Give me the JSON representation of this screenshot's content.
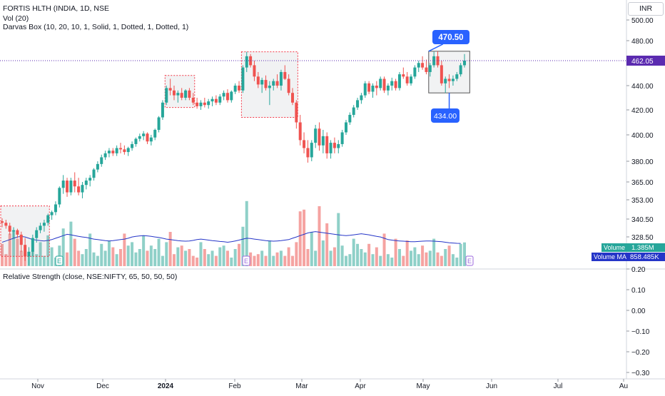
{
  "header": {
    "symbol_line": "FORTIS HLTH (INDIA, 1D, NSE",
    "volume_line": "Vol (20)",
    "darvas_line": "Darvas Box (10, 20, 10, 1, Solid, 1, Dotted, 1, Dotted, 1)",
    "currency_button": "INR"
  },
  "indicator_pane": {
    "legend": "Relative Strength (close, NSE:NIFTY, 65, 50, 50, 50)"
  },
  "price_axis": {
    "ticks": [
      "500.00",
      "480.00",
      "462.05",
      "440.00",
      "420.00",
      "400.00",
      "380.00",
      "365.00",
      "353.00",
      "340.50",
      "328.50"
    ]
  },
  "rs_axis": {
    "ticks": [
      "0.20",
      "0.10",
      "0.00",
      "−0.10",
      "−0.20",
      "−0.30"
    ]
  },
  "time_axis": {
    "labels": [
      "Nov",
      "Dec",
      "2024",
      "Feb",
      "Mar",
      "Apr",
      "May",
      "Jun",
      "Jul",
      "Au"
    ]
  },
  "labels": {
    "last_price": "462.05",
    "volume_tag": "Volume",
    "volume_value": "1.385M",
    "volume_ma_tag": "Volume MA",
    "volume_ma_value": "858.485K",
    "box_high": "470.50",
    "box_low": "434.00",
    "earnings_marker": "E"
  },
  "colors": {
    "up": "#26a69a",
    "down": "#ef5350",
    "volume_up": "#8fd0c8",
    "volume_down": "#f5a3a1",
    "volume_ma": "#2535c8",
    "accent": "#2962ff",
    "last_price_bg": "#5b2bb0",
    "darvas_border": "#f23645",
    "earnings_green": "#26a69a",
    "earnings_purple": "#9c6ade"
  },
  "chart_data": {
    "type": "candlestick",
    "symbol": "FORTIS HLTH",
    "interval": "1D",
    "exchange": "NSE",
    "x_axis_months": [
      "Nov",
      "Dec",
      "2024",
      "Feb",
      "Mar",
      "Apr",
      "May",
      "Jun",
      "Jul",
      "Au"
    ],
    "y_axis_ticks": [
      500.0,
      480.0,
      462.05,
      440.0,
      420.0,
      400.0,
      380.0,
      365.0,
      353.0,
      340.5,
      328.5
    ],
    "ylim": [
      326,
      505
    ],
    "candles": [
      [
        339,
        341,
        335,
        338
      ],
      [
        338,
        340,
        334,
        336
      ],
      [
        336,
        338,
        330,
        332
      ],
      [
        332,
        335,
        328,
        333
      ],
      [
        333,
        334,
        328,
        330
      ],
      [
        330,
        332,
        322,
        325
      ],
      [
        325,
        328,
        318,
        320
      ],
      [
        320,
        324,
        316,
        322
      ],
      [
        322,
        330,
        320,
        328
      ],
      [
        328,
        335,
        326,
        333
      ],
      [
        333,
        338,
        331,
        336
      ],
      [
        336,
        340,
        332,
        338
      ],
      [
        338,
        344,
        336,
        343
      ],
      [
        343,
        346,
        340,
        345
      ],
      [
        345,
        352,
        343,
        350
      ],
      [
        350,
        362,
        348,
        361
      ],
      [
        361,
        370,
        357,
        366
      ],
      [
        366,
        368,
        355,
        358
      ],
      [
        358,
        368,
        356,
        366
      ],
      [
        366,
        372,
        358,
        362
      ],
      [
        362,
        368,
        356,
        358
      ],
      [
        358,
        365,
        354,
        363
      ],
      [
        363,
        368,
        360,
        366
      ],
      [
        366,
        370,
        362,
        368
      ],
      [
        368,
        375,
        366,
        374
      ],
      [
        374,
        380,
        372,
        378
      ],
      [
        378,
        385,
        376,
        383
      ],
      [
        383,
        388,
        381,
        386
      ],
      [
        386,
        390,
        383,
        388
      ],
      [
        388,
        390,
        384,
        386
      ],
      [
        386,
        392,
        384,
        390
      ],
      [
        390,
        394,
        386,
        389
      ],
      [
        389,
        392,
        385,
        387
      ],
      [
        387,
        391,
        384,
        390
      ],
      [
        390,
        395,
        388,
        393
      ],
      [
        393,
        398,
        391,
        397
      ],
      [
        397,
        401,
        395,
        399
      ],
      [
        399,
        403,
        396,
        401
      ],
      [
        401,
        402,
        393,
        395
      ],
      [
        395,
        400,
        392,
        398
      ],
      [
        398,
        405,
        396,
        404
      ],
      [
        404,
        415,
        402,
        414
      ],
      [
        414,
        428,
        412,
        426
      ],
      [
        426,
        440,
        424,
        438
      ],
      [
        438,
        446,
        432,
        436
      ],
      [
        436,
        440,
        428,
        432
      ],
      [
        432,
        436,
        426,
        434
      ],
      [
        434,
        438,
        428,
        430
      ],
      [
        430,
        437,
        428,
        436
      ],
      [
        436,
        438,
        428,
        430
      ],
      [
        430,
        434,
        424,
        426
      ],
      [
        426,
        430,
        421,
        423
      ],
      [
        423,
        428,
        420,
        426
      ],
      [
        426,
        430,
        422,
        424
      ],
      [
        424,
        429,
        421,
        427
      ],
      [
        427,
        431,
        423,
        429
      ],
      [
        429,
        432,
        424,
        426
      ],
      [
        426,
        433,
        424,
        431
      ],
      [
        431,
        436,
        428,
        434
      ],
      [
        434,
        437,
        426,
        428
      ],
      [
        428,
        436,
        426,
        435
      ],
      [
        435,
        442,
        433,
        440
      ],
      [
        440,
        444,
        434,
        436
      ],
      [
        436,
        458,
        434,
        456
      ],
      [
        456,
        470,
        452,
        466
      ],
      [
        466,
        468,
        456,
        458
      ],
      [
        458,
        462,
        444,
        448
      ],
      [
        448,
        452,
        438,
        441
      ],
      [
        441,
        447,
        434,
        445
      ],
      [
        445,
        449,
        436,
        438
      ],
      [
        438,
        444,
        424,
        440
      ],
      [
        440,
        446,
        436,
        444
      ],
      [
        444,
        450,
        438,
        440
      ],
      [
        440,
        454,
        436,
        452
      ],
      [
        452,
        458,
        445,
        446
      ],
      [
        446,
        450,
        432,
        434
      ],
      [
        434,
        438,
        424,
        426
      ],
      [
        426,
        428,
        405,
        410
      ],
      [
        410,
        416,
        392,
        396
      ],
      [
        396,
        402,
        386,
        390
      ],
      [
        390,
        396,
        379,
        383
      ],
      [
        383,
        396,
        380,
        394
      ],
      [
        394,
        408,
        390,
        405
      ],
      [
        405,
        410,
        388,
        392
      ],
      [
        392,
        404,
        386,
        399
      ],
      [
        399,
        402,
        382,
        386
      ],
      [
        386,
        396,
        382,
        394
      ],
      [
        394,
        398,
        386,
        390
      ],
      [
        390,
        396,
        386,
        393
      ],
      [
        393,
        404,
        391,
        402
      ],
      [
        402,
        412,
        400,
        410
      ],
      [
        410,
        418,
        408,
        416
      ],
      [
        416,
        424,
        414,
        422
      ],
      [
        422,
        430,
        420,
        428
      ],
      [
        428,
        434,
        425,
        432
      ],
      [
        432,
        444,
        430,
        442
      ],
      [
        442,
        444,
        433,
        435
      ],
      [
        435,
        442,
        430,
        440
      ],
      [
        440,
        444,
        432,
        438
      ],
      [
        438,
        448,
        436,
        446
      ],
      [
        446,
        448,
        434,
        436
      ],
      [
        436,
        442,
        432,
        440
      ],
      [
        440,
        447,
        436,
        444
      ],
      [
        444,
        446,
        436,
        438
      ],
      [
        438,
        452,
        436,
        450
      ],
      [
        450,
        456,
        446,
        448
      ],
      [
        448,
        452,
        440,
        442
      ],
      [
        442,
        450,
        440,
        448
      ],
      [
        448,
        458,
        446,
        456
      ],
      [
        456,
        462,
        452,
        460
      ],
      [
        460,
        466,
        454,
        456
      ],
      [
        456,
        463,
        450,
        452
      ],
      [
        452,
        460,
        448,
        458
      ],
      [
        458,
        470,
        456,
        466
      ],
      [
        466,
        470.5,
        456,
        458
      ],
      [
        458,
        462,
        440,
        442
      ],
      [
        442,
        448,
        434,
        446
      ],
      [
        446,
        450,
        438,
        444
      ],
      [
        444,
        449,
        440,
        446
      ],
      [
        446,
        452,
        444,
        450
      ],
      [
        450,
        460,
        448,
        458
      ],
      [
        458,
        468,
        456,
        462.05
      ]
    ],
    "volume_ma": [
      0.9,
      0.95,
      1.0,
      1.05,
      1.1,
      1.12,
      1.1,
      1.05,
      1.0,
      0.98,
      0.96,
      0.95,
      0.97,
      1.0,
      1.05,
      1.1,
      1.15,
      1.2,
      1.18,
      1.15,
      1.12,
      1.1,
      1.08,
      1.05,
      1.02,
      1.0,
      0.98,
      0.96,
      0.95,
      0.96,
      0.98,
      1.0,
      1.02,
      1.05,
      1.1,
      1.12,
      1.14,
      1.15,
      1.14,
      1.12,
      1.1,
      1.08,
      1.05,
      1.02,
      1.0,
      0.98,
      0.96,
      0.95,
      0.94,
      0.95,
      0.97,
      1.0,
      1.02,
      1.0,
      0.98,
      0.96,
      0.95,
      0.93,
      0.92,
      0.9,
      0.92,
      0.95,
      0.98,
      1.02,
      1.05,
      1.04,
      1.02,
      1.0,
      0.98,
      0.96,
      0.95,
      0.94,
      0.95,
      0.96,
      0.98,
      1.0,
      1.05,
      1.1,
      1.15,
      1.2,
      1.25,
      1.28,
      1.3,
      1.28,
      1.26,
      1.24,
      1.22,
      1.2,
      1.18,
      1.16,
      1.15,
      1.16,
      1.18,
      1.2,
      1.22,
      1.2,
      1.18,
      1.15,
      1.12,
      1.1,
      1.05,
      1.0,
      0.98,
      0.96,
      0.95,
      0.94,
      0.93,
      0.92,
      0.92,
      0.93,
      0.94,
      0.95,
      0.95,
      0.94,
      0.93,
      0.92,
      0.9,
      0.88,
      0.87,
      0.86,
      0.858
    ],
    "volumes": [
      1.3,
      0.7,
      1.9,
      2.0,
      1.6,
      0.9,
      0.8,
      0.6,
      0.9,
      0.7,
      1.4,
      0.6,
      1.8,
      1.1,
      0.5,
      1.2,
      2.2,
      0.8,
      2.6,
      1.6,
      0.9,
      0.7,
      1.0,
      1.9,
      0.8,
      0.6,
      1.3,
      0.9,
      1.5,
      1.1,
      0.7,
      1.0,
      1.9,
      1.2,
      1.4,
      0.8,
      1.0,
      1.8,
      0.9,
      1.2,
      1.0,
      1.6,
      0.6,
      1.4,
      2.0,
      0.7,
      1.1,
      1.2,
      0.9,
      1.0,
      0.6,
      0.5,
      1.4,
      1.0,
      0.7,
      0.9,
      0.6,
      1.1,
      1.2,
      0.9,
      0.5,
      1.0,
      1.3,
      2.3,
      3.8,
      0.8,
      0.6,
      0.7,
      0.9,
      0.6,
      1.5,
      0.6,
      0.8,
      0.9,
      0.6,
      1.1,
      0.6,
      1.4,
      3.2,
      3.3,
      1.0,
      2.0,
      0.9,
      3.5,
      1.5,
      2.5,
      0.9,
      1.1,
      3.1,
      1.2,
      0.6,
      0.7,
      1.6,
      1.3,
      1.0,
      0.8,
      1.3,
      0.7,
      1.1,
      0.6,
      1.9,
      0.7,
      0.5,
      1.6,
      1.0,
      0.6,
      1.5,
      0.9,
      1.1,
      0.7,
      1.2,
      0.8,
      0.9,
      1.6,
      0.8,
      0.6,
      1.0,
      1.2,
      0.7,
      0.5,
      1.3,
      1.385
    ],
    "darvas_boxes": [
      {
        "top": 470.5,
        "bottom": 434.0
      },
      {
        "top": 470.0,
        "bottom": 414.0
      },
      {
        "top": 449.0,
        "bottom": 422.0
      },
      {
        "top": 349.0,
        "bottom": 320.0
      }
    ],
    "relative_strength_axis": [
      0.2,
      0.1,
      0.0,
      -0.1,
      -0.2,
      -0.3
    ],
    "last_price": 462.05,
    "last_volume": "1.385M",
    "volume_ma_last": "858.485K"
  }
}
